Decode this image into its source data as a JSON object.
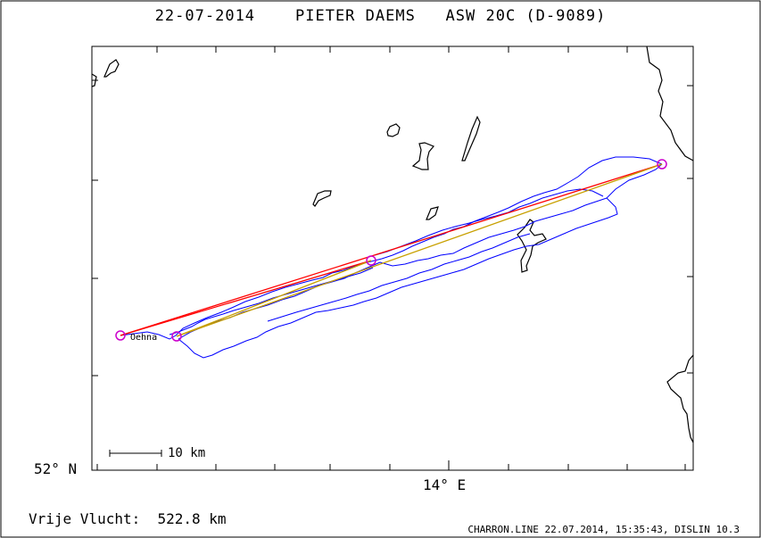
{
  "header": {
    "date": "22-07-2014",
    "pilot": "PIETER DAEMS",
    "glider": "ASW 20C (D-9089)"
  },
  "map": {
    "lat_label": "52° N",
    "lon_label": "14° E",
    "scale_label": "10 km",
    "place_label": "Oehna",
    "colors": {
      "track": "#0000ff",
      "task_line": "#ff0000",
      "leg_line": "#c8a000",
      "turnpoint": "#cc00cc",
      "coast": "#000000"
    }
  },
  "footer": {
    "distance_label": "Vrije Vlucht:",
    "distance_value": "522.8 km",
    "credit": "CHARRON.LINE 22.07.2014, 15:35:43, DISLIN 10.3"
  }
}
